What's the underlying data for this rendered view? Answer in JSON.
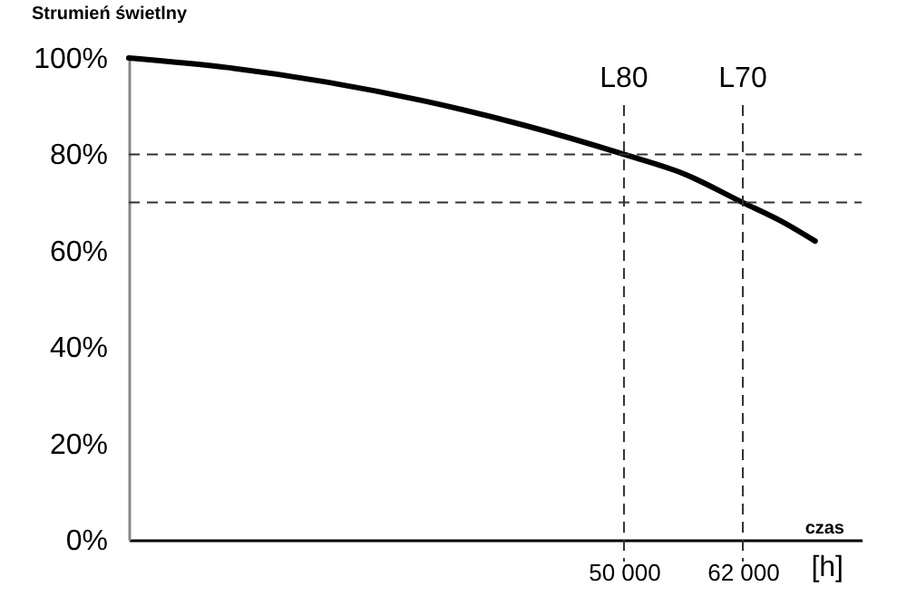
{
  "chart_data": {
    "type": "line",
    "ylabel": "Strumień świetlny",
    "xlabel": "czas",
    "annotations": [
      "[h]"
    ],
    "x": [
      0,
      10000,
      20000,
      30000,
      40000,
      50000,
      56000,
      62000,
      66000,
      69300
    ],
    "series": [
      {
        "color": "#000000",
        "values": [
          100,
          98,
          95,
          91,
          86,
          80,
          76,
          70,
          66,
          62
        ]
      }
    ],
    "xlim": [
      0,
      74000
    ],
    "xticks": [
      {
        "value": 50000,
        "label": "50 000"
      },
      {
        "value": 62000,
        "label": "62 000"
      }
    ],
    "ylim": [
      0,
      100
    ],
    "yticks": [
      {
        "value": 0,
        "label": "0%"
      },
      {
        "value": 20,
        "label": "20%"
      },
      {
        "value": 40,
        "label": "40%"
      },
      {
        "value": 60,
        "label": "60%"
      },
      {
        "value": 80,
        "label": "80%"
      },
      {
        "value": 100,
        "label": "100%"
      }
    ],
    "ref_lines": [
      {
        "axis": "x",
        "value": 50000,
        "label": "L80",
        "line_style": "dashed",
        "color": "#333333"
      },
      {
        "axis": "x",
        "value": 62000,
        "label": "L70",
        "line_style": "dashed",
        "color": "#333333"
      },
      {
        "axis": "y",
        "value": 80,
        "line_style": "dashed",
        "color": "#333333"
      },
      {
        "axis": "y",
        "value": 70,
        "line_style": "dashed",
        "color": "#333333"
      }
    ]
  }
}
